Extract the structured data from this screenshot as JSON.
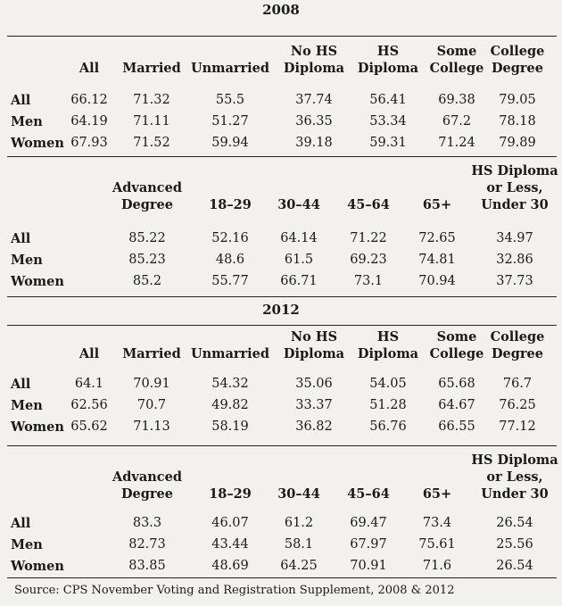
{
  "tables": [
    {
      "year": "2008",
      "blocks": [
        {
          "headers": [
            [
              "",
              "All"
            ],
            [
              "",
              "Married"
            ],
            [
              "",
              "Unmarried"
            ],
            [
              "No HS",
              "Diploma"
            ],
            [
              "HS",
              "Diploma"
            ],
            [
              "Some",
              "College"
            ],
            [
              "College",
              "Degree"
            ]
          ],
          "rows": [
            {
              "label": "All",
              "values": [
                "66.12",
                "71.32",
                "55.5",
                "37.74",
                "56.41",
                "69.38",
                "79.05"
              ]
            },
            {
              "label": "Men",
              "values": [
                "64.19",
                "71.11",
                "51.27",
                "36.35",
                "53.34",
                "67.2",
                "78.18"
              ]
            },
            {
              "label": "Women",
              "values": [
                "67.93",
                "71.52",
                "59.94",
                "39.18",
                "59.31",
                "71.24",
                "79.89"
              ]
            }
          ]
        },
        {
          "headers": [
            [
              "",
              "Advanced",
              "Degree"
            ],
            [
              "",
              "",
              "18–29"
            ],
            [
              "",
              "",
              "30–44"
            ],
            [
              "",
              "",
              "45–64"
            ],
            [
              "",
              "",
              "65+"
            ],
            [
              "HS Diploma",
              "or Less,",
              "Under 30"
            ]
          ],
          "rows": [
            {
              "label": "All",
              "values": [
                "85.22",
                "52.16",
                "64.14",
                "71.22",
                "72.65",
                "34.97"
              ]
            },
            {
              "label": "Men",
              "values": [
                "85.23",
                "48.6",
                "61.5",
                "69.23",
                "74.81",
                "32.86"
              ]
            },
            {
              "label": "Women",
              "values": [
                "85.2",
                "55.77",
                "66.71",
                "73.1",
                "70.94",
                "37.73"
              ]
            }
          ]
        }
      ]
    },
    {
      "year": "2012",
      "blocks": [
        {
          "headers": [
            [
              "",
              "All"
            ],
            [
              "",
              "Married"
            ],
            [
              "",
              "Unmarried"
            ],
            [
              "No HS",
              "Diploma"
            ],
            [
              "HS",
              "Diploma"
            ],
            [
              "Some",
              "College"
            ],
            [
              "College",
              "Degree"
            ]
          ],
          "rows": [
            {
              "label": "All",
              "values": [
                "64.1",
                "70.91",
                "54.32",
                "35.06",
                "54.05",
                "65.68",
                "76.7"
              ]
            },
            {
              "label": "Men",
              "values": [
                "62.56",
                "70.7",
                "49.82",
                "33.37",
                "51.28",
                "64.67",
                "76.25"
              ]
            },
            {
              "label": "Women",
              "values": [
                "65.62",
                "71.13",
                "58.19",
                "36.82",
                "56.76",
                "66.55",
                "77.12"
              ]
            }
          ]
        },
        {
          "headers": [
            [
              "",
              "Advanced",
              "Degree"
            ],
            [
              "",
              "",
              "18–29"
            ],
            [
              "",
              "",
              "30–44"
            ],
            [
              "",
              "",
              "45–64"
            ],
            [
              "",
              "",
              "65+"
            ],
            [
              "HS Diploma",
              "or Less,",
              "Under 30"
            ]
          ],
          "rows": [
            {
              "label": "All",
              "values": [
                "83.3",
                "46.07",
                "61.2",
                "69.47",
                "73.4",
                "26.54"
              ]
            },
            {
              "label": "Men",
              "values": [
                "82.73",
                "43.44",
                "58.1",
                "67.97",
                "75.61",
                "25.56"
              ]
            },
            {
              "label": "Women",
              "values": [
                "83.85",
                "48.69",
                "64.25",
                "70.91",
                "71.6",
                "26.54"
              ]
            }
          ]
        }
      ]
    }
  ],
  "source": "Source: CPS November Voting and Registration Supplement, 2008 & 2012"
}
